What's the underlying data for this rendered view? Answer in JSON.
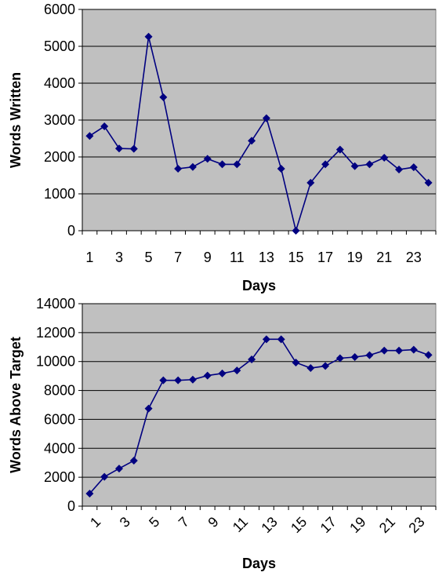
{
  "chart_data": [
    {
      "type": "line",
      "xlabel": "Days",
      "ylabel": "Words Written",
      "ylim": [
        0,
        6000
      ],
      "ytick_step": 1000,
      "x": [
        1,
        2,
        3,
        4,
        5,
        6,
        7,
        8,
        9,
        10,
        11,
        12,
        13,
        14,
        15,
        16,
        17,
        18,
        19,
        20,
        21,
        22,
        23,
        24
      ],
      "xtick_labels": [
        "1",
        "3",
        "5",
        "7",
        "9",
        "11",
        "13",
        "15",
        "17",
        "19",
        "21",
        "23"
      ],
      "ytick_labels": [
        "0",
        "1000",
        "2000",
        "3000",
        "4000",
        "5000",
        "6000"
      ],
      "series": [
        {
          "values": [
            2570,
            2830,
            2230,
            2220,
            5260,
            3620,
            1680,
            1730,
            1950,
            1800,
            1800,
            2440,
            3050,
            1680,
            0,
            1300,
            1800,
            2200,
            1750,
            1800,
            1980,
            1660,
            1720,
            1300
          ],
          "color": "#000080"
        }
      ],
      "grid": true,
      "x_tick_rotation": 0
    },
    {
      "type": "line",
      "xlabel": "Days",
      "ylabel": "Words Above Target",
      "ylim": [
        0,
        14000
      ],
      "ytick_step": 2000,
      "x": [
        1,
        2,
        3,
        4,
        5,
        6,
        7,
        8,
        9,
        10,
        11,
        12,
        13,
        14,
        15,
        16,
        17,
        18,
        19,
        20,
        21,
        22,
        23,
        24
      ],
      "xtick_labels": [
        "1",
        "3",
        "5",
        "7",
        "9",
        "11",
        "13",
        "15",
        "17",
        "19",
        "21",
        "23"
      ],
      "ytick_labels": [
        "0",
        "2000",
        "4000",
        "6000",
        "8000",
        "10000",
        "12000",
        "14000"
      ],
      "series": [
        {
          "values": [
            870,
            2030,
            2600,
            3150,
            6750,
            8700,
            8700,
            8750,
            9030,
            9180,
            9380,
            10150,
            11540,
            11540,
            9930,
            9550,
            9690,
            10230,
            10310,
            10440,
            10760,
            10760,
            10820,
            10450
          ],
          "color": "#000080"
        }
      ],
      "grid": true,
      "x_tick_rotation": -45
    }
  ]
}
